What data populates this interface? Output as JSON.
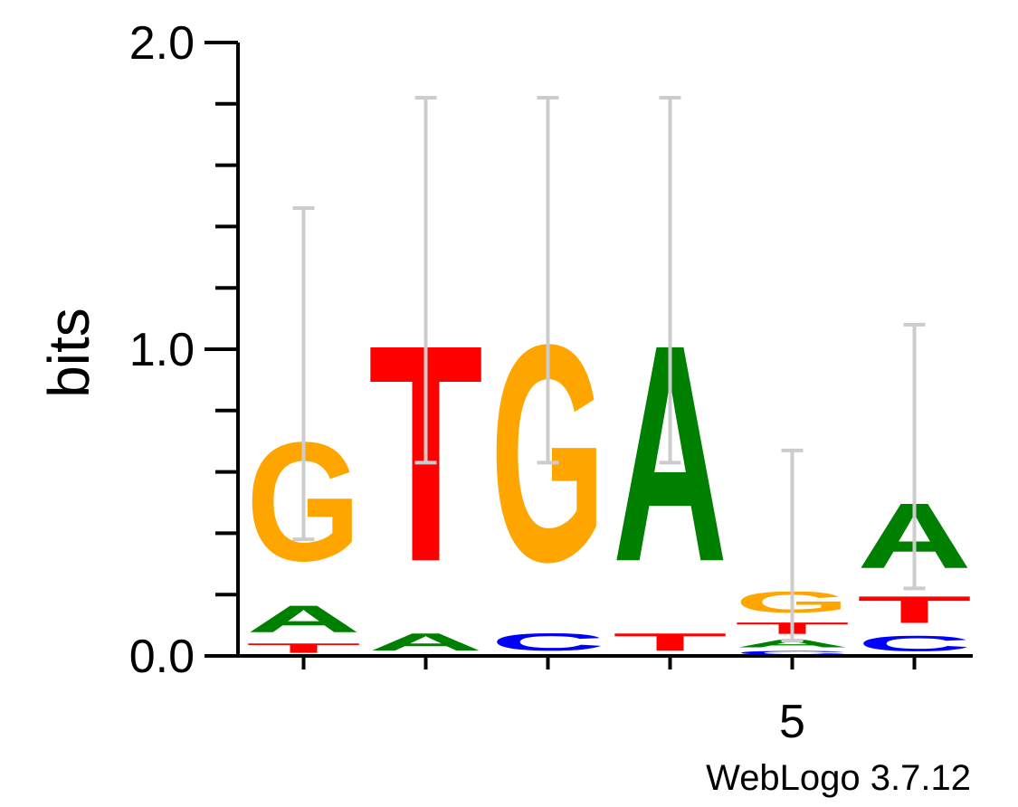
{
  "chart_data": {
    "type": "sequence-logo",
    "ylabel": "bits",
    "ylim": [
      0,
      2
    ],
    "y_ticks": [
      {
        "value": 0,
        "label": "0.0"
      },
      {
        "value": 1,
        "label": "1.0"
      },
      {
        "value": 2,
        "label": "2.0"
      }
    ],
    "positions": [
      {
        "index": 1,
        "tick_label": "",
        "letters": [
          {
            "base": "T",
            "bits": 0.05
          },
          {
            "base": "A",
            "bits": 0.14
          },
          {
            "base": "G",
            "bits": 0.62
          }
        ],
        "error": [
          0.38,
          1.46
        ]
      },
      {
        "index": 2,
        "tick_label": "",
        "letters": [
          {
            "base": "A",
            "bits": 0.09
          },
          {
            "base": "T",
            "bits": 1.13
          }
        ],
        "error": [
          0.63,
          1.82
        ]
      },
      {
        "index": 3,
        "tick_label": "",
        "letters": [
          {
            "base": "C",
            "bits": 0.09
          },
          {
            "base": "G",
            "bits": 1.13
          }
        ],
        "error": [
          0.63,
          1.82
        ]
      },
      {
        "index": 4,
        "tick_label": "",
        "letters": [
          {
            "base": "T",
            "bits": 0.09
          },
          {
            "base": "A",
            "bits": 1.13
          }
        ],
        "error": [
          0.63,
          1.82
        ]
      },
      {
        "index": 5,
        "tick_label": "5",
        "letters": [
          {
            "base": "C",
            "bits": 0.02
          },
          {
            "base": "A",
            "bits": 0.04
          },
          {
            "base": "T",
            "bits": 0.06
          },
          {
            "base": "G",
            "bits": 0.11
          }
        ],
        "error": [
          0.05,
          0.67
        ]
      },
      {
        "index": 6,
        "tick_label": "",
        "letters": [
          {
            "base": "C",
            "bits": 0.08
          },
          {
            "base": "T",
            "bits": 0.14
          },
          {
            "base": "A",
            "bits": 0.34
          }
        ],
        "error": [
          0.22,
          1.08
        ]
      }
    ],
    "colors": {
      "A": "#008000",
      "C": "#0000ff",
      "G": "#ffa500",
      "T": "#ff0000",
      "error_bar": "#cccccc",
      "axis": "#000000"
    }
  },
  "footer": {
    "credit": "WebLogo 3.7.12"
  }
}
